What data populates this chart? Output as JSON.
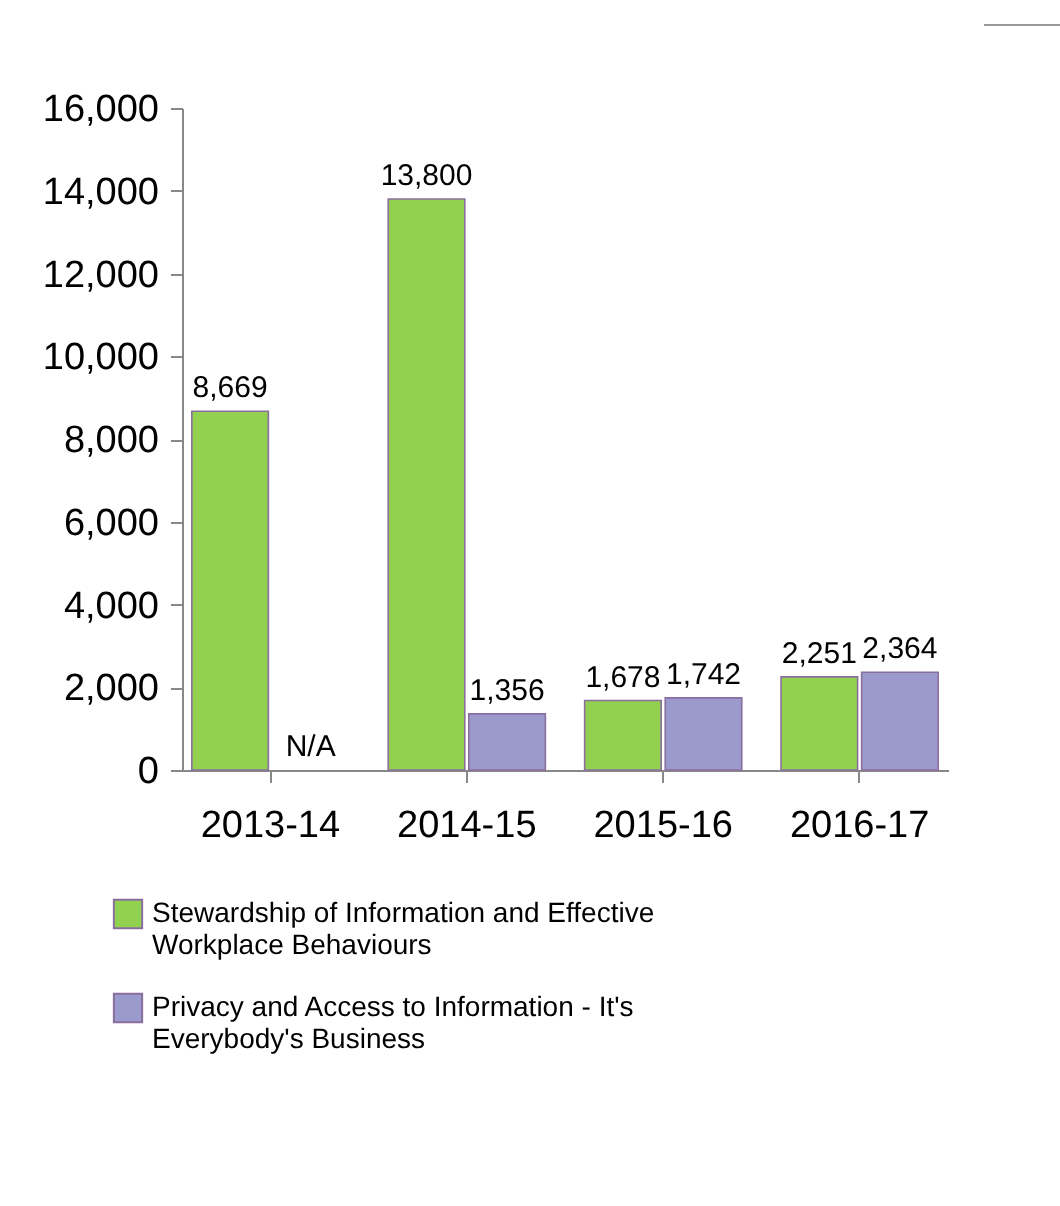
{
  "chart_data": {
    "type": "bar",
    "categories": [
      "2013-14",
      "2014-15",
      "2015-16",
      "2016-17"
    ],
    "series": [
      {
        "name": "Stewardship of Information and Effective Workplace Behaviours",
        "color": "#92d050",
        "values": [
          8669,
          13800,
          1678,
          2251
        ],
        "value_labels": [
          "8,669",
          "13,800",
          "1,678",
          "2,251"
        ]
      },
      {
        "name": "Privacy and Access to Information - It's Everybody's Business",
        "color": "#9a9acc",
        "values": [
          null,
          1356,
          1742,
          2364
        ],
        "value_labels": [
          "N/A",
          "1,356",
          "1,742",
          "2,364"
        ]
      }
    ],
    "ylim": [
      0,
      16000
    ],
    "yticks": [
      0,
      {
        "value": 2000,
        "label": "2,000"
      },
      {
        "value": 4000,
        "label": "4,000"
      },
      {
        "value": 6000,
        "label": "6,000"
      },
      {
        "value": 8000,
        "label": "8,000"
      },
      {
        "value": 10000,
        "label": "10,000"
      },
      {
        "value": 12000,
        "label": "12,000"
      },
      {
        "value": 14000,
        "label": "14,000"
      },
      {
        "value": 16000,
        "label": "16,000"
      }
    ],
    "grid": false,
    "legend": "bottom"
  }
}
